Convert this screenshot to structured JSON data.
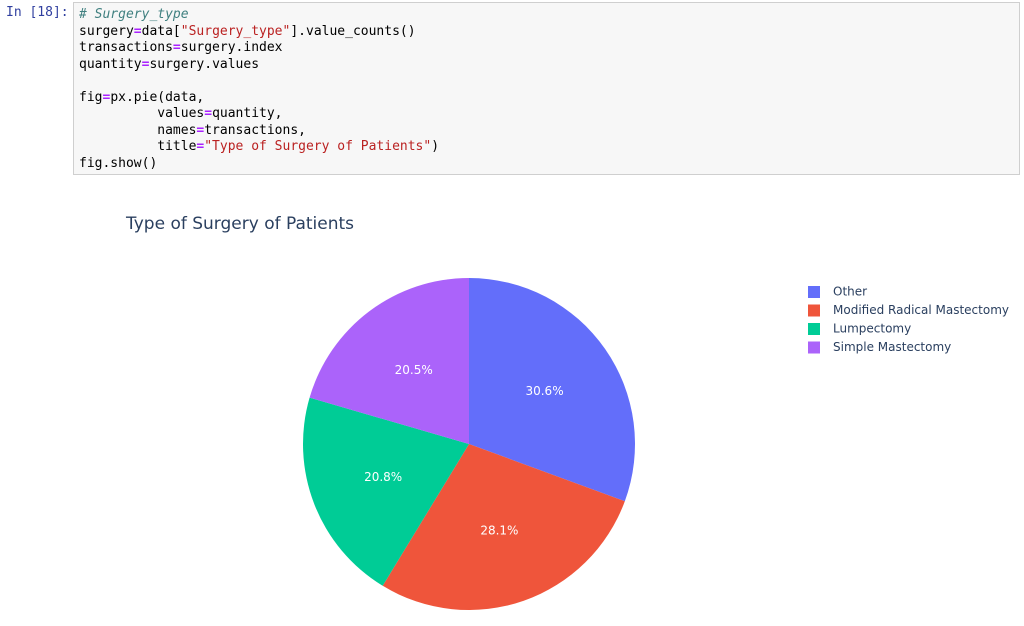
{
  "cell": {
    "prompt": "In [18]:",
    "code": [
      "# Surgery_type",
      "surgery=data[\"Surgery_type\"].value_counts()",
      "transactions=surgery.index",
      "quantity=surgery.values",
      "fig=px.pie(data,",
      "          values=quantity,",
      "          names=transactions,",
      "          title=\"Type of Surgery of Patients\")",
      "fig.show()"
    ]
  },
  "chart_data": {
    "type": "pie",
    "title": "Type of Surgery of Patients",
    "categories": [
      "Other",
      "Modified Radical Mastectomy",
      "Lumpectomy",
      "Simple Mastectomy"
    ],
    "values": [
      30.6,
      28.1,
      20.8,
      20.5
    ],
    "value_labels": [
      "30.6%",
      "28.1%",
      "20.8%",
      "20.5%"
    ],
    "colors": [
      "#636efa",
      "#ef553b",
      "#00cc96",
      "#ab63fa"
    ],
    "legend": "top-right"
  }
}
